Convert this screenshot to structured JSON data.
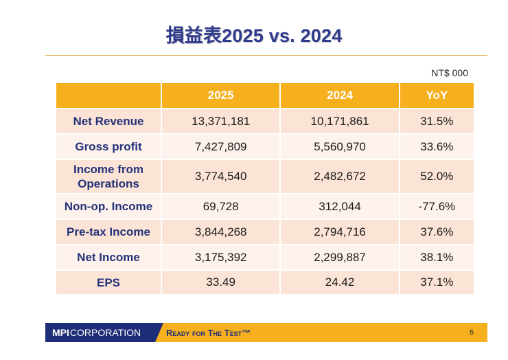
{
  "title": "損益表2025 vs. 2024",
  "unit": "NT$ 000",
  "table": {
    "headers": [
      "",
      "2025",
      "2024",
      "YoY"
    ],
    "rows": [
      {
        "label": "Net Revenue",
        "v2025": "13,371,181",
        "v2024": "10,171,861",
        "yoy": "31.5%"
      },
      {
        "label": "Gross profit",
        "v2025": "7,427,809",
        "v2024": "5,560,970",
        "yoy": "33.6%"
      },
      {
        "label": "Income from Operations",
        "v2025": "3,774,540",
        "v2024": "2,482,672",
        "yoy": "52.0%"
      },
      {
        "label": "Non-op. Income",
        "v2025": "69,728",
        "v2024": "312,044",
        "yoy": "-77.6%"
      },
      {
        "label": "Pre-tax Income",
        "v2025": "3,844,268",
        "v2024": "2,794,716",
        "yoy": "37.6%"
      },
      {
        "label": "Net Income",
        "v2025": "3,175,392",
        "v2024": "2,299,887",
        "yoy": "38.1%"
      },
      {
        "label": "EPS",
        "v2025": "33.49",
        "v2024": "24.42",
        "yoy": "37.1%"
      }
    ]
  },
  "footer": {
    "logo_strong": "MPI",
    "logo_light": "CORPORATION",
    "tagline": "Ready for The Test™",
    "page_number": "6"
  },
  "colors": {
    "title": "#2E3A8C",
    "header_bg": "#F6B01E",
    "row_odd": "#FBE4D6",
    "row_even": "#FDF2EC",
    "footer_bar": "#F6B01E",
    "logo_bg": "#1E2D78"
  }
}
